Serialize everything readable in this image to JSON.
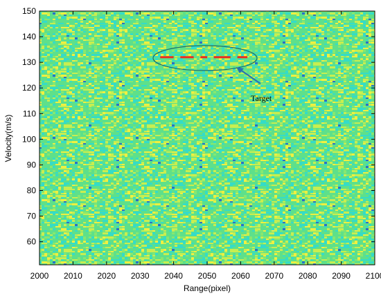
{
  "chart_data": {
    "type": "heatmap",
    "x_label": "Range(pixel)",
    "y_label": "Velocity(m/s)",
    "xlim": [
      2000,
      2100
    ],
    "xticks": [
      2000,
      2010,
      2020,
      2030,
      2040,
      2050,
      2060,
      2070,
      2080,
      2090,
      2100
    ],
    "ylim": [
      51,
      150
    ],
    "yticks": [
      60,
      70,
      80,
      90,
      100,
      110,
      120,
      130,
      140,
      150
    ],
    "target": {
      "x_ranges": [
        [
          2036,
          2040
        ],
        [
          2042,
          2046
        ],
        [
          2048,
          2050
        ],
        [
          2052,
          2057
        ],
        [
          2059,
          2062
        ]
      ],
      "y": 132,
      "color": "#e83020"
    },
    "annotation": "Target"
  }
}
